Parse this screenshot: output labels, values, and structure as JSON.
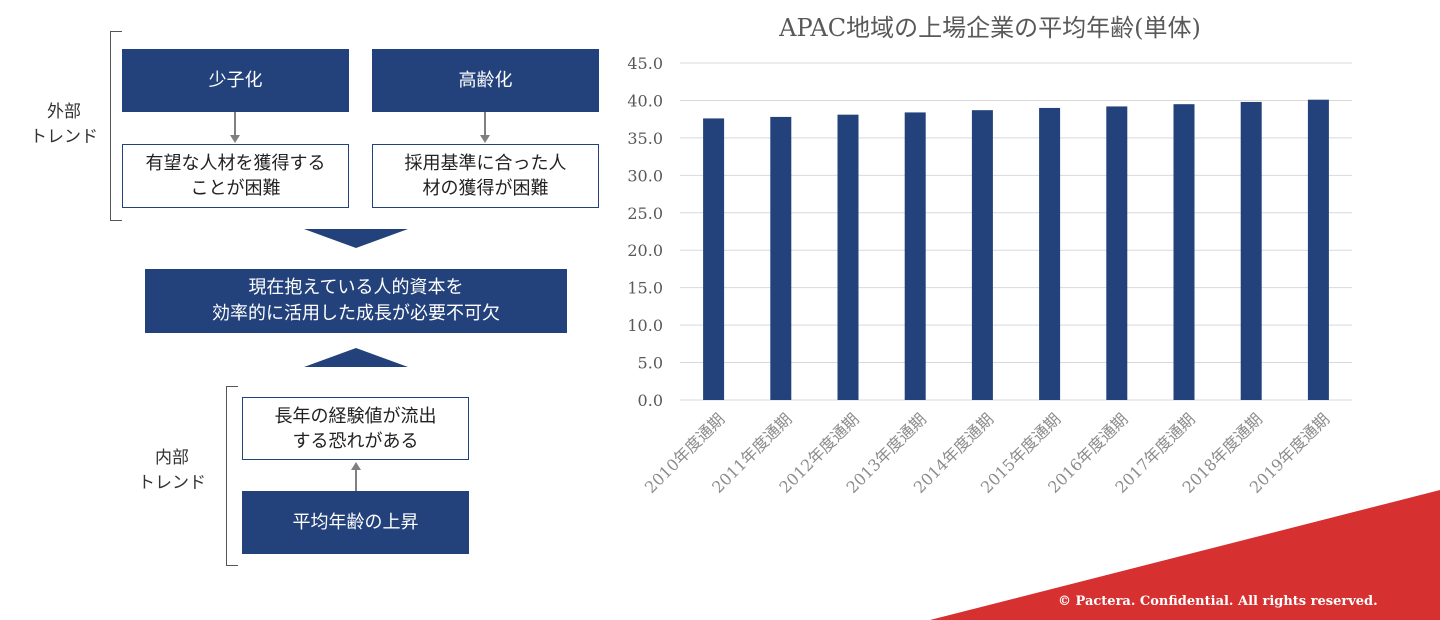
{
  "diagram": {
    "external_label": "外部\nトレンド",
    "internal_label": "内部\nトレンド",
    "box_shoshika": "少子化",
    "box_koreika": "高齢化",
    "box_talent": "有望な人材を獲得する\nことが困難",
    "box_talent2": "採用基準に合った人\n材の獲得が困難",
    "center_box": "現在抱えている人的資本を\n効率的に活用した成長が必要不可欠",
    "box_experience": "長年の経験値が流出\nする恐れがある",
    "box_age_rise": "平均年齢の上昇"
  },
  "chart_data": {
    "type": "bar",
    "title": "APAC地域の上場企業の平均年齢(単体)",
    "categories": [
      "2010年度通期",
      "2011年度通期",
      "2012年度通期",
      "2013年度通期",
      "2014年度通期",
      "2015年度通期",
      "2016年度通期",
      "2017年度通期",
      "2018年度通期",
      "2019年度通期"
    ],
    "values": [
      37.6,
      37.8,
      38.1,
      38.4,
      38.7,
      39.0,
      39.2,
      39.5,
      39.8,
      40.1
    ],
    "y_ticks": [
      "0.0",
      "5.0",
      "10.0",
      "15.0",
      "20.0",
      "25.0",
      "30.0",
      "35.0",
      "40.0",
      "45.0"
    ],
    "ylim": [
      0,
      45
    ],
    "grid": true,
    "bar_color": "#23417a"
  },
  "footer": {
    "text": "© Pactera.  Confidential.  All rights reserved.",
    "accent_color": "#d63031"
  }
}
